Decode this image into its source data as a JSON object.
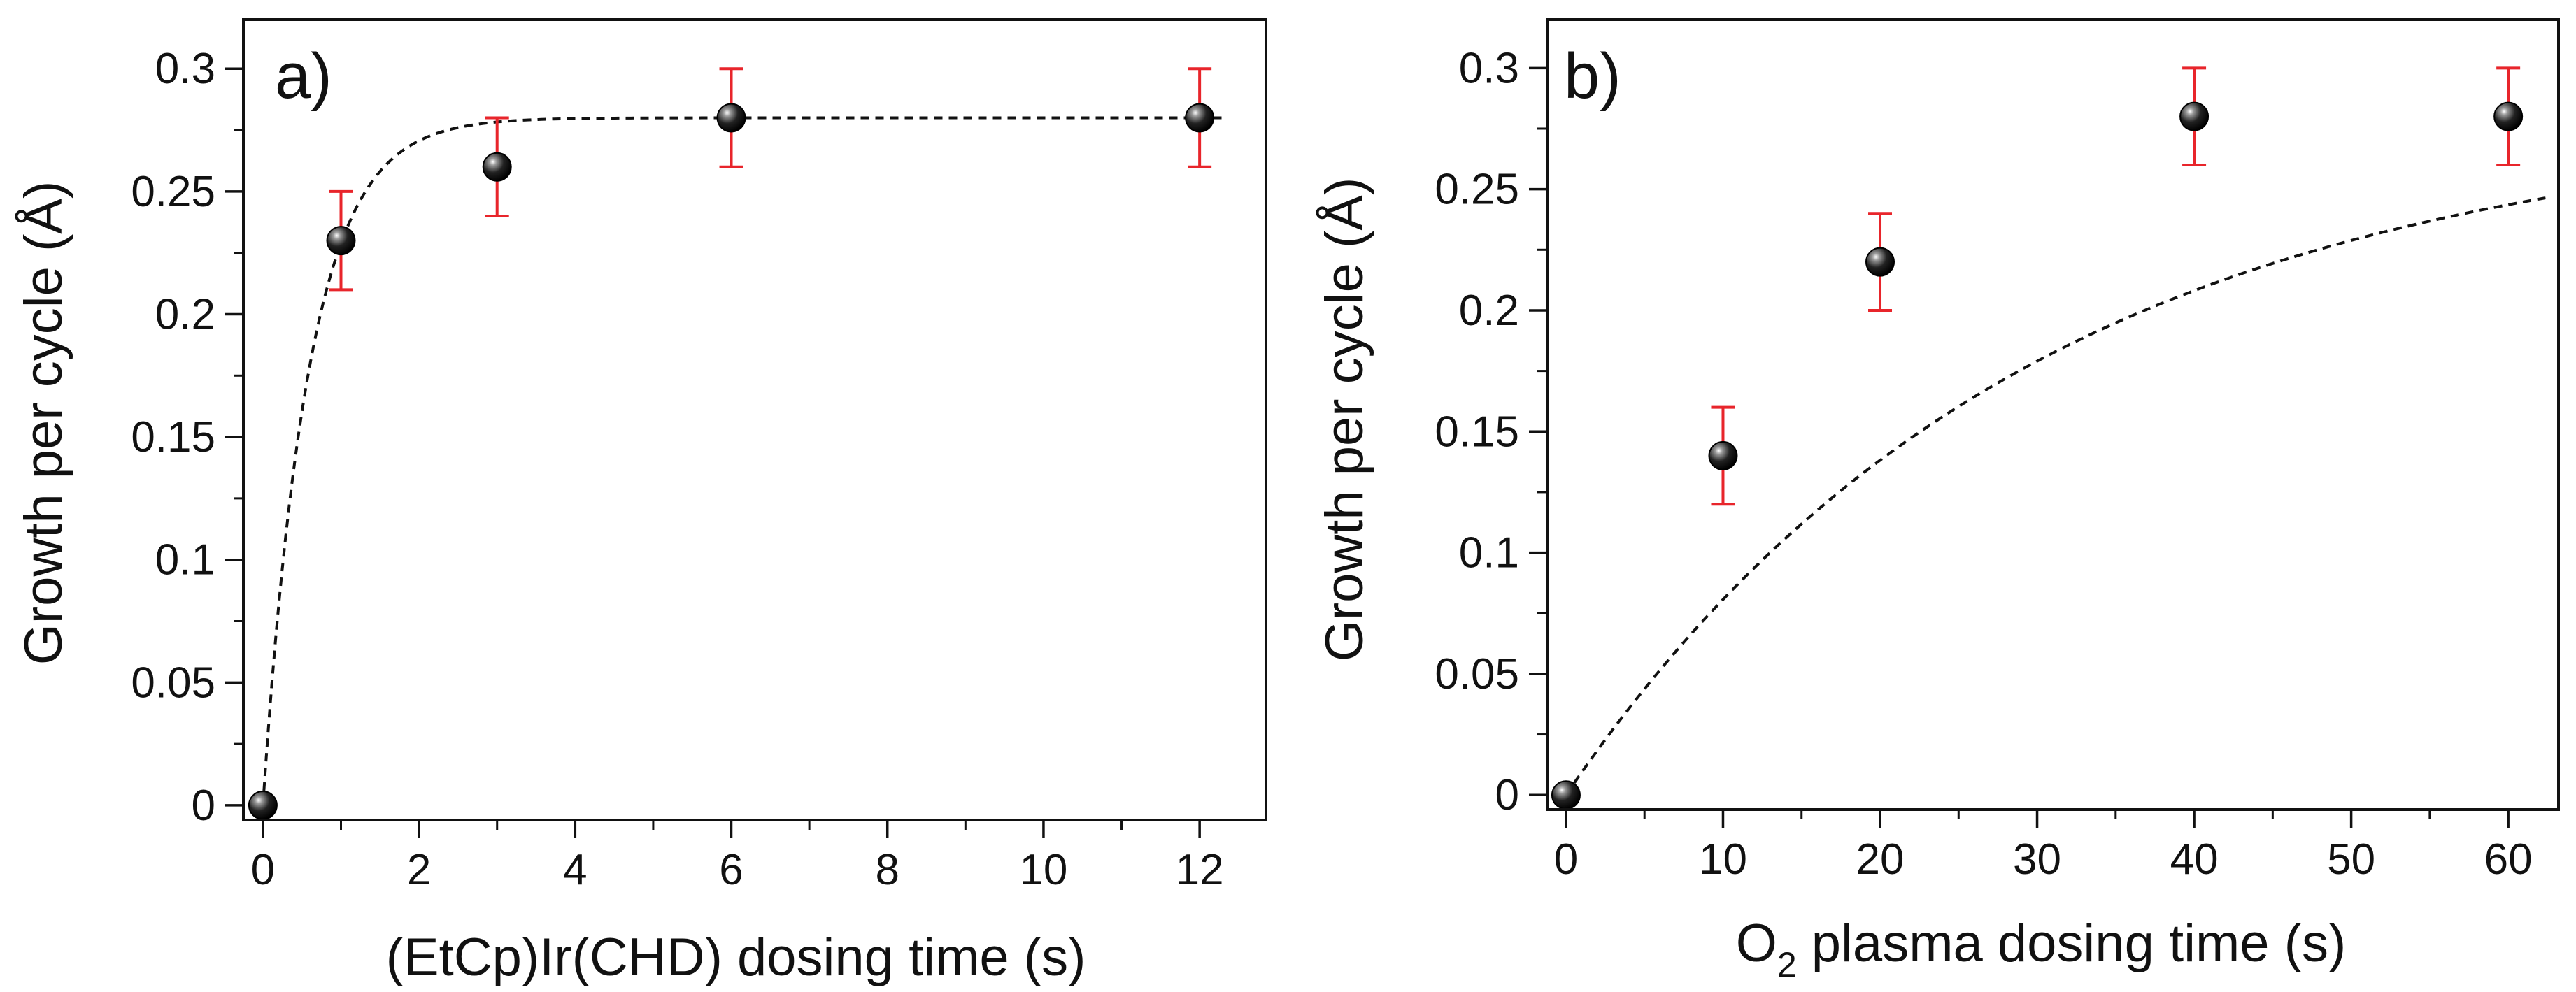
{
  "chart_data": [
    {
      "type": "scatter",
      "panel_label": "a)",
      "xlabel": "(EtCp)Ir(CHD) dosing time (s)",
      "ylabel": "Growth per cycle (Å)",
      "xlim": [
        -0.25,
        12.85
      ],
      "ylim": [
        -0.006,
        0.32
      ],
      "x_ticks": [
        0,
        2,
        4,
        6,
        8,
        10,
        12
      ],
      "x_tick_labels": [
        "0",
        "2",
        "4",
        "6",
        "8",
        "10",
        "12"
      ],
      "x_minor_step": 1,
      "y_ticks": [
        0,
        0.05,
        0.1,
        0.15,
        0.2,
        0.25,
        0.3
      ],
      "y_tick_labels": [
        "0",
        "0.05",
        "0.1",
        "0.15",
        "0.2",
        "0.25",
        "0.3"
      ],
      "y_minor_step": 0.025,
      "points": [
        {
          "x": 0,
          "y": 0,
          "err": 0
        },
        {
          "x": 1,
          "y": 0.23,
          "err": 0.02
        },
        {
          "x": 3,
          "y": 0.26,
          "err": 0.02
        },
        {
          "x": 6,
          "y": 0.28,
          "err": 0.02
        },
        {
          "x": 12,
          "y": 0.28,
          "err": 0.02
        }
      ],
      "fit": {
        "style": "dashed",
        "a": 0.28,
        "k": 1.7,
        "x_end": 12.3
      },
      "error_color": "#e8252b",
      "marker_color": "#111111"
    },
    {
      "type": "scatter",
      "panel_label": "b)",
      "xlabel_main": "O",
      "xlabel_sub": "2",
      "xlabel_rest": " plasma dosing time (s)",
      "ylabel": "Growth per cycle (Å)",
      "xlim": [
        -1.2,
        63.2
      ],
      "ylim": [
        -0.006,
        0.32
      ],
      "x_ticks": [
        0,
        10,
        20,
        30,
        40,
        50,
        60
      ],
      "x_tick_labels": [
        "0",
        "10",
        "20",
        "30",
        "40",
        "50",
        "60"
      ],
      "x_minor_step": 5,
      "y_ticks": [
        0,
        0.05,
        0.1,
        0.15,
        0.2,
        0.25,
        0.3
      ],
      "y_tick_labels": [
        "0",
        "0.05",
        "0.1",
        "0.15",
        "0.2",
        "0.25",
        "0.3"
      ],
      "y_minor_step": 0.025,
      "points": [
        {
          "x": 0,
          "y": 0,
          "err": 0
        },
        {
          "x": 10,
          "y": 0.14,
          "err": 0.02
        },
        {
          "x": 20,
          "y": 0.22,
          "err": 0.02
        },
        {
          "x": 40,
          "y": 0.28,
          "err": 0.02
        },
        {
          "x": 60,
          "y": 0.28,
          "err": 0.02
        }
      ],
      "fit": {
        "style": "dashed",
        "a": 0.28,
        "k": 0.034,
        "x_end": 62.5
      },
      "error_color": "#e8252b",
      "marker_color": "#111111"
    }
  ]
}
